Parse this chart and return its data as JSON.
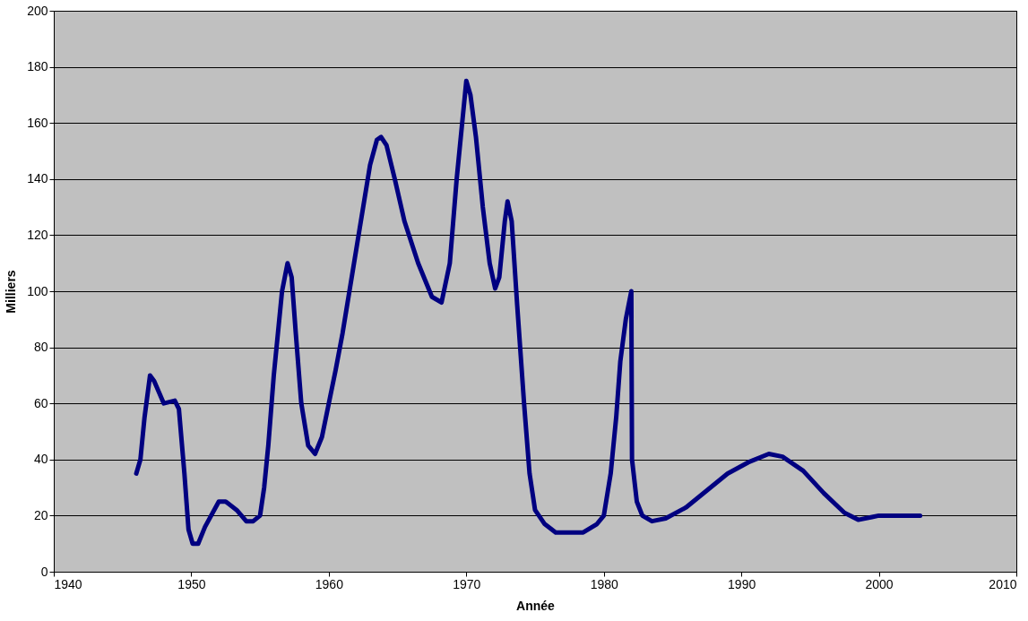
{
  "chart_data": {
    "type": "line",
    "xlabel": "Année",
    "ylabel": "Milliers",
    "x": [
      1946.0,
      1946.3,
      1946.6,
      1947.0,
      1947.3,
      1948.0,
      1948.8,
      1949.1,
      1949.5,
      1949.8,
      1950.1,
      1950.5,
      1951.0,
      1952.0,
      1952.5,
      1953.3,
      1954.0,
      1954.5,
      1955.0,
      1955.3,
      1955.6,
      1956.0,
      1956.3,
      1956.6,
      1957.0,
      1957.3,
      1957.6,
      1958.0,
      1958.5,
      1959.0,
      1959.5,
      1960.0,
      1960.5,
      1961.0,
      1961.5,
      1962.0,
      1962.5,
      1963.0,
      1963.5,
      1963.8,
      1964.2,
      1964.8,
      1965.5,
      1966.5,
      1967.5,
      1968.2,
      1968.8,
      1969.3,
      1969.7,
      1970.0,
      1970.3,
      1970.7,
      1971.2,
      1971.7,
      1972.1,
      1972.4,
      1972.8,
      1973.0,
      1973.3,
      1973.7,
      1974.2,
      1974.6,
      1975.0,
      1975.7,
      1976.5,
      1977.5,
      1978.5,
      1979.5,
      1980.0,
      1980.5,
      1980.9,
      1981.2,
      1981.6,
      1982.0,
      1982.05,
      1982.4,
      1982.8,
      1983.5,
      1984.5,
      1986.0,
      1987.5,
      1989.0,
      1990.5,
      1992.0,
      1993.0,
      1994.5,
      1996.0,
      1997.5,
      1998.5,
      1999.5,
      2000.0,
      2003.0
    ],
    "series": [
      {
        "color": "#000080",
        "values": [
          35,
          40,
          55,
          70,
          68,
          60,
          61,
          58,
          35,
          15,
          10,
          10,
          16,
          25,
          25,
          22,
          18,
          18,
          20,
          30,
          45,
          70,
          85,
          100,
          110,
          105,
          85,
          60,
          45,
          42,
          48,
          60,
          72,
          85,
          100,
          115,
          130,
          145,
          154,
          155,
          152,
          140,
          125,
          110,
          98,
          96,
          110,
          140,
          160,
          175,
          170,
          155,
          130,
          110,
          101,
          105,
          125,
          132,
          125,
          95,
          60,
          35,
          22,
          17,
          14,
          14,
          14,
          17,
          20,
          35,
          55,
          75,
          90,
          100,
          40,
          25,
          20,
          18,
          19,
          23,
          29,
          35,
          39,
          42,
          41,
          36,
          28,
          21,
          18.5,
          19.5,
          20,
          20
        ]
      }
    ],
    "xlim": [
      1940,
      2010
    ],
    "xticks": [
      1940,
      1950,
      1960,
      1970,
      1980,
      1990,
      2000,
      2010
    ],
    "ylim": [
      0,
      200
    ],
    "yticks": [
      0,
      20,
      40,
      60,
      80,
      100,
      120,
      140,
      160,
      180,
      200
    ],
    "grid": "y",
    "marker": "none",
    "line_style": "solid"
  }
}
